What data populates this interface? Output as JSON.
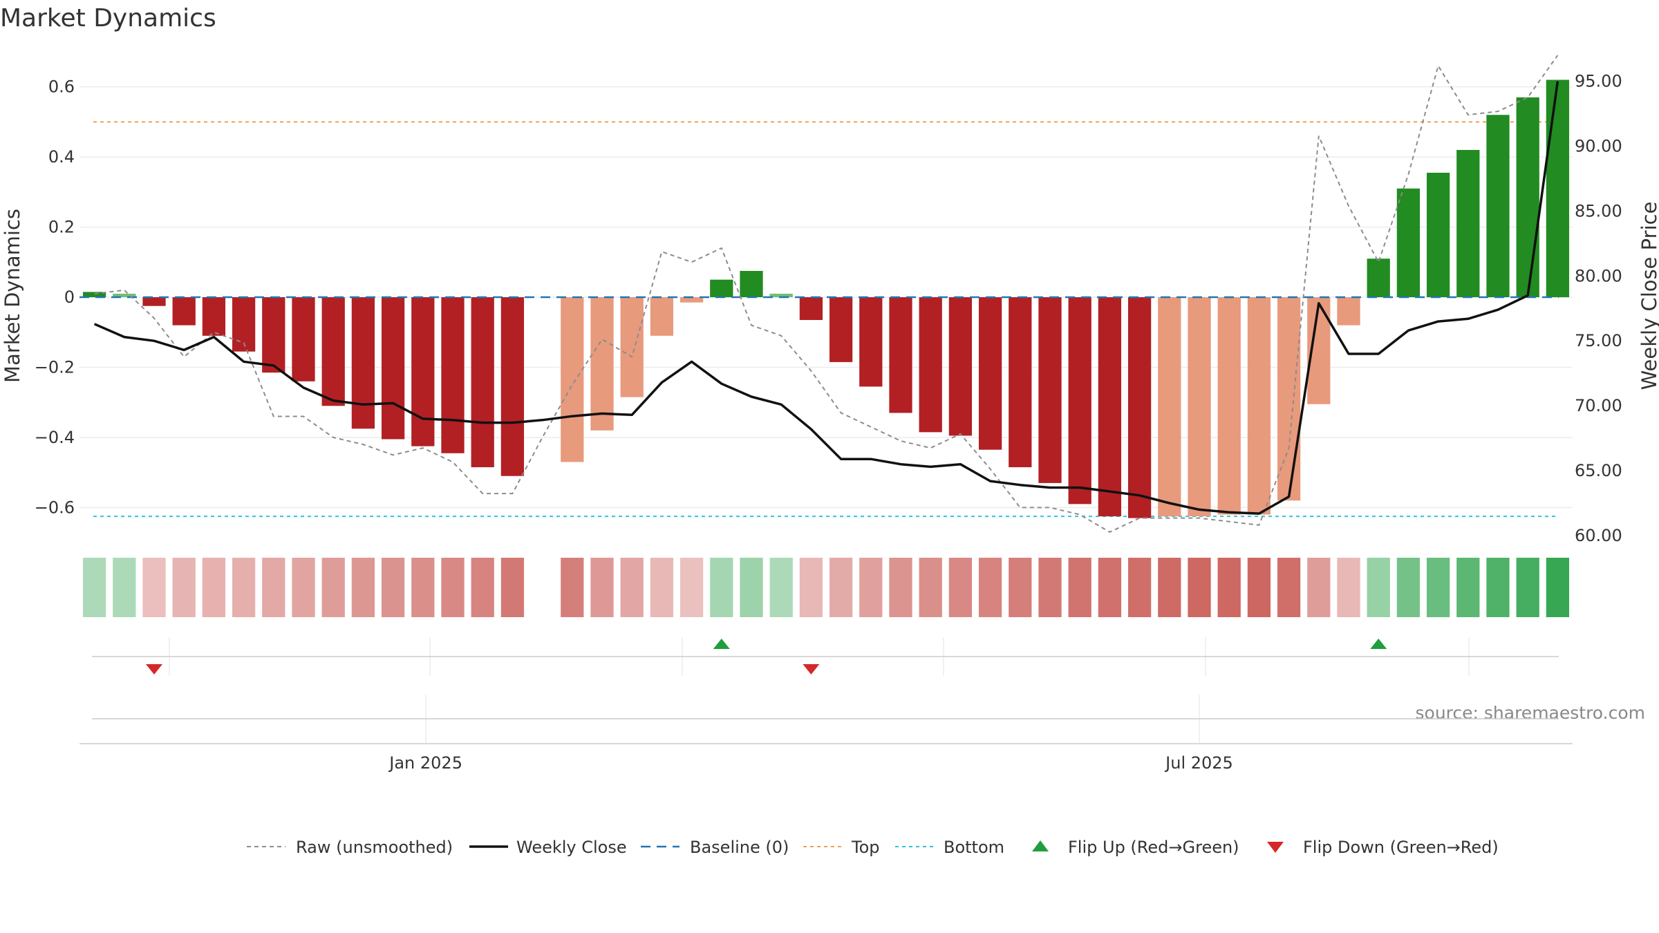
{
  "chart_data": {
    "type": "bar",
    "title": "Market Dynamics",
    "ylabel": "Market Dynamics",
    "y2label": "Weekly Close Price",
    "ylim": [
      -0.68,
      0.69
    ],
    "y2lim": [
      60.0,
      97.0
    ],
    "y_ticks": [
      0.6,
      0.4,
      0.2,
      0,
      -0.2,
      -0.4,
      -0.6
    ],
    "y_tick_labels": [
      "0.6",
      "0.4",
      "0.2",
      "0",
      "−0.2",
      "−0.4",
      "−0.6"
    ],
    "y2_ticks": [
      95,
      90,
      85,
      80,
      75,
      70,
      65,
      60
    ],
    "y2_tick_labels": [
      "95.00",
      "90.00",
      "85.00",
      "80.00",
      "75.00",
      "70.00",
      "65.00",
      "60.00"
    ],
    "x_tick_labels": [
      {
        "label": "Jan 2025",
        "index": 11.6
      },
      {
        "label": "Jul 2025",
        "index": 37.5
      }
    ],
    "top_level": 0.5,
    "bottom_level": -0.625,
    "baseline": 0,
    "values": [
      0.015,
      0.01,
      -0.025,
      -0.08,
      -0.11,
      -0.155,
      -0.215,
      -0.24,
      -0.31,
      -0.375,
      -0.405,
      -0.425,
      -0.445,
      -0.485,
      -0.51,
      null,
      -0.47,
      -0.38,
      -0.285,
      -0.11,
      -0.015,
      0.05,
      0.075,
      0.01,
      -0.065,
      -0.185,
      -0.255,
      -0.33,
      -0.385,
      -0.395,
      -0.435,
      -0.485,
      -0.53,
      -0.59,
      -0.625,
      -0.63,
      -0.625,
      -0.625,
      -0.62,
      -0.62,
      -0.58,
      -0.305,
      -0.08,
      0.11,
      0.31,
      0.355,
      0.42,
      0.52,
      0.57,
      0.62
    ],
    "bar_states": [
      "strong_up",
      "weak_up",
      "strong_down",
      "strong_down",
      "strong_down",
      "strong_down",
      "strong_down",
      "strong_down",
      "strong_down",
      "strong_down",
      "strong_down",
      "strong_down",
      "strong_down",
      "strong_down",
      "strong_down",
      "none",
      "weak_down",
      "weak_down",
      "weak_down",
      "weak_down",
      "weak_down",
      "strong_up",
      "strong_up",
      "weak_up",
      "strong_down",
      "strong_down",
      "strong_down",
      "strong_down",
      "strong_down",
      "strong_down",
      "strong_down",
      "strong_down",
      "strong_down",
      "strong_down",
      "strong_down",
      "strong_down",
      "weak_down",
      "weak_down",
      "weak_down",
      "weak_down",
      "weak_down",
      "weak_down",
      "weak_down",
      "strong_up",
      "strong_up",
      "strong_up",
      "strong_up",
      "strong_up",
      "strong_up",
      "strong_up"
    ],
    "raw_values": [
      0.01,
      0.02,
      -0.06,
      -0.17,
      -0.1,
      -0.13,
      -0.34,
      -0.34,
      -0.4,
      -0.42,
      -0.45,
      -0.43,
      -0.47,
      -0.56,
      -0.56,
      -0.4,
      -0.25,
      -0.12,
      -0.17,
      0.13,
      0.1,
      0.14,
      -0.08,
      -0.11,
      -0.21,
      -0.33,
      -0.37,
      -0.41,
      -0.43,
      -0.39,
      -0.49,
      -0.6,
      -0.6,
      -0.62,
      -0.67,
      -0.63,
      -0.63,
      -0.63,
      -0.64,
      -0.65,
      -0.43,
      0.46,
      0.26,
      0.1,
      0.35,
      0.66,
      0.52,
      0.53,
      0.57,
      0.75
    ],
    "weekly_close": [
      76.3,
      75.3,
      75.0,
      74.3,
      75.3,
      73.4,
      73.1,
      71.4,
      70.4,
      70.1,
      70.2,
      69.0,
      68.9,
      68.7,
      68.7,
      68.9,
      69.2,
      69.4,
      69.3,
      71.8,
      73.4,
      71.7,
      70.7,
      70.1,
      68.2,
      65.9,
      65.9,
      65.5,
      65.3,
      65.5,
      64.2,
      63.9,
      63.7,
      63.7,
      63.4,
      63.1,
      62.5,
      62.0,
      61.8,
      61.7,
      63.0,
      77.9,
      74.0,
      74.0,
      75.8,
      76.5,
      76.7,
      77.4,
      78.5,
      95.0
    ],
    "heat_intensity": [
      0.25,
      0.25,
      0.2,
      0.28,
      0.3,
      0.32,
      0.36,
      0.4,
      0.45,
      0.5,
      0.53,
      0.56,
      0.6,
      0.64,
      0.72,
      null,
      0.68,
      0.48,
      0.38,
      0.25,
      0.18,
      0.3,
      0.35,
      0.25,
      0.25,
      0.35,
      0.43,
      0.52,
      0.56,
      0.6,
      0.64,
      0.68,
      0.72,
      0.76,
      0.78,
      0.8,
      0.83,
      0.85,
      0.85,
      0.86,
      0.8,
      0.45,
      0.25,
      0.38,
      0.6,
      0.68,
      0.76,
      0.84,
      0.9,
      1.0
    ],
    "heat_direction": [
      "up",
      "up",
      "down",
      "down",
      "down",
      "down",
      "down",
      "down",
      "down",
      "down",
      "down",
      "down",
      "down",
      "down",
      "down",
      "none",
      "down",
      "down",
      "down",
      "down",
      "down",
      "up",
      "up",
      "up",
      "down",
      "down",
      "down",
      "down",
      "down",
      "down",
      "down",
      "down",
      "down",
      "down",
      "down",
      "down",
      "down",
      "down",
      "down",
      "down",
      "down",
      "down",
      "down",
      "up",
      "up",
      "up",
      "up",
      "up",
      "up",
      "up"
    ],
    "flip_up_indices": [
      21,
      43
    ],
    "flip_down_indices": [
      2,
      24
    ],
    "legend": [
      "Raw (unsmoothed)",
      "Weekly Close",
      "Baseline (0)",
      "Top",
      "Bottom",
      "Flip Up (Red→Green)",
      "Flip Down (Green→Red)"
    ],
    "legend_position": "bottom-center",
    "source": "source: sharemaestro.com"
  },
  "colors": {
    "strong_up": "#228B22",
    "weak_up": "#74BE74",
    "strong_down": "#B22024",
    "weak_down": "#E89A7C",
    "raw": "#8C8C8C",
    "weekly_close": "#111111",
    "baseline": "#1F77B4",
    "top": "#F0A050",
    "bottom": "#2EC4D6",
    "flip_up": "#1E9E3E",
    "flip_down": "#D62728"
  }
}
